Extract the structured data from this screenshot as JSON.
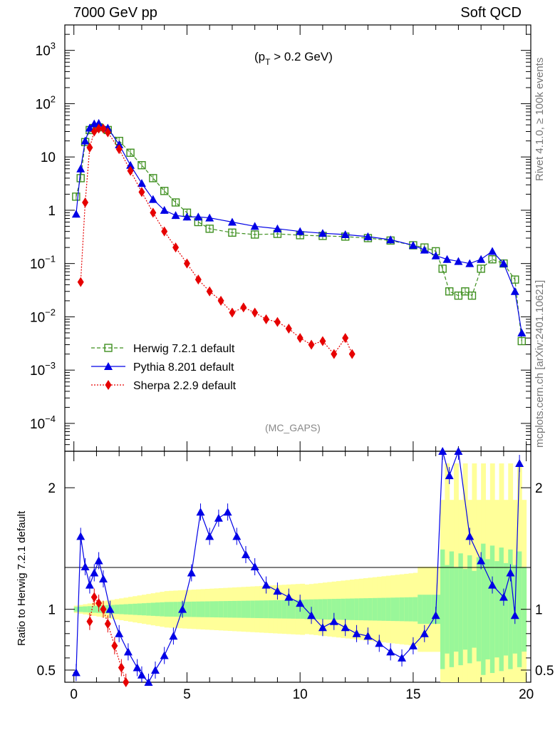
{
  "header": {
    "left": "7000 GeV pp",
    "right": "Soft QCD"
  },
  "side": {
    "rivet": "Rivet 4.1.0, ≥ 100k events",
    "mcplots": "mcplots.cern.ch [arXiv:2401.10621]"
  },
  "chart_data": {
    "type": "line",
    "title": "7000 GeV pp",
    "process": "Soft QCD",
    "annotation": "(p_T > 0.2 GeV)",
    "watermark": "(MC_GAPS)",
    "xlabel": "",
    "ylabel": "",
    "ratio_ylabel": "Ratio to Herwig 7.2.1 default",
    "xlim": [
      -0.4,
      20.2
    ],
    "ylim": [
      3e-05,
      3000
    ],
    "ratio_ylim": [
      0.4,
      2.3
    ],
    "yscale": "log",
    "x_ticks": [
      "0",
      "5",
      "10",
      "15",
      "20"
    ],
    "y_ticks": [
      {
        "v": 0.0001,
        "base": "10",
        "exp": "−4"
      },
      {
        "v": 0.001,
        "base": "10",
        "exp": "−3"
      },
      {
        "v": 0.01,
        "base": "10",
        "exp": "−2"
      },
      {
        "v": 0.1,
        "base": "10",
        "exp": "−1"
      },
      {
        "v": 1,
        "base": "1",
        "exp": ""
      },
      {
        "v": 10,
        "base": "10",
        "exp": ""
      },
      {
        "v": 100,
        "base": "10",
        "exp": "2"
      },
      {
        "v": 1000,
        "base": "10",
        "exp": "3"
      }
    ],
    "ratio_ticks": [
      {
        "v": 0.5,
        "label": "0.5"
      },
      {
        "v": 1,
        "label": "1"
      },
      {
        "v": 2,
        "label": "2"
      }
    ],
    "legend_position": "bottom-left",
    "series": [
      {
        "name": "Herwig 7.2.1 default",
        "color": "#3e8f1f",
        "marker": "open-square",
        "x": [
          0.1,
          0.3,
          0.5,
          0.7,
          0.9,
          1.1,
          1.5,
          2.0,
          2.5,
          3.0,
          3.5,
          4.0,
          4.5,
          5.0,
          5.5,
          6.0,
          7.0,
          8.0,
          9.0,
          10.0,
          11.0,
          12.0,
          13.0,
          14.0,
          15.0,
          15.5,
          16.0,
          16.3,
          16.6,
          17.0,
          17.3,
          17.6,
          18.0,
          18.5,
          19.0,
          19.5,
          19.8
        ],
        "y": [
          1.8,
          4.0,
          19,
          32,
          35,
          36,
          32,
          20,
          12,
          7,
          4,
          2.3,
          1.4,
          0.9,
          0.6,
          0.45,
          0.38,
          0.35,
          0.36,
          0.34,
          0.33,
          0.32,
          0.3,
          0.27,
          0.22,
          0.2,
          0.17,
          0.08,
          0.03,
          0.025,
          0.03,
          0.025,
          0.08,
          0.12,
          0.1,
          0.05,
          0.0035
        ]
      },
      {
        "name": "Pythia 8.201 default",
        "color": "#0000e6",
        "marker": "filled-triangle",
        "x": [
          0.1,
          0.3,
          0.5,
          0.7,
          0.9,
          1.1,
          1.5,
          2.0,
          2.5,
          3.0,
          3.5,
          4.0,
          4.5,
          5.0,
          5.5,
          6.0,
          7.0,
          8.0,
          9.0,
          10.0,
          11.0,
          12.0,
          13.0,
          14.0,
          15.0,
          15.5,
          16.0,
          16.5,
          17.0,
          17.5,
          18.0,
          18.5,
          19.0,
          19.5,
          19.8
        ],
        "y": [
          0.85,
          6.0,
          20,
          35,
          42,
          43,
          35,
          17,
          7,
          3.2,
          1.6,
          1.0,
          0.8,
          0.75,
          0.75,
          0.72,
          0.6,
          0.5,
          0.45,
          0.4,
          0.37,
          0.35,
          0.32,
          0.28,
          0.22,
          0.18,
          0.14,
          0.12,
          0.11,
          0.1,
          0.12,
          0.17,
          0.1,
          0.03,
          0.005
        ]
      },
      {
        "name": "Sherpa 2.2.9 default",
        "color": "#e60000",
        "marker": "filled-diamond",
        "x": [
          0.3,
          0.5,
          0.7,
          0.9,
          1.1,
          1.3,
          1.5,
          2.0,
          2.5,
          3.0,
          3.5,
          4.0,
          4.5,
          5.0,
          5.5,
          6.0,
          6.5,
          7.0,
          7.5,
          8.0,
          8.5,
          9.0,
          9.5,
          10.0,
          10.5,
          11.0,
          11.5,
          12.0,
          12.3
        ],
        "y": [
          0.045,
          1.4,
          15,
          30,
          34,
          34,
          29,
          14,
          5.5,
          2.2,
          0.9,
          0.4,
          0.2,
          0.1,
          0.05,
          0.03,
          0.02,
          0.012,
          0.015,
          0.012,
          0.009,
          0.008,
          0.006,
          0.004,
          0.003,
          0.0035,
          0.002,
          0.004,
          0.002
        ]
      }
    ],
    "ratio_series": [
      {
        "name": "Pythia 8.201 default",
        "color": "#0000e6",
        "x": [
          0.1,
          0.3,
          0.5,
          0.7,
          0.9,
          1.1,
          1.3,
          1.6,
          2.0,
          2.4,
          2.8,
          3.0,
          3.3,
          3.6,
          4.0,
          4.4,
          4.8,
          5.2,
          5.6,
          6.0,
          6.4,
          6.8,
          7.2,
          7.6,
          8.0,
          8.5,
          9.0,
          9.5,
          10.0,
          10.5,
          11.0,
          11.5,
          12.0,
          12.5,
          13.0,
          13.5,
          14.0,
          14.5,
          15.0,
          15.5,
          16.0,
          16.3,
          16.6,
          17.0,
          17.5,
          18.0,
          18.5,
          19.0,
          19.3,
          19.5,
          19.7
        ],
        "y": [
          0.48,
          1.6,
          1.35,
          1.2,
          1.3,
          1.4,
          1.25,
          1.0,
          0.8,
          0.65,
          0.52,
          0.46,
          0.4,
          0.5,
          0.62,
          0.78,
          1.0,
          1.3,
          1.8,
          1.6,
          1.75,
          1.8,
          1.6,
          1.45,
          1.35,
          1.2,
          1.15,
          1.1,
          1.05,
          0.95,
          0.85,
          0.9,
          0.85,
          0.8,
          0.78,
          0.72,
          0.65,
          0.6,
          0.7,
          0.8,
          0.95,
          2.3,
          2.1,
          2.3,
          1.6,
          1.4,
          1.2,
          1.1,
          1.3,
          0.95,
          2.2
        ]
      },
      {
        "name": "Sherpa 2.2.9 default",
        "color": "#e60000",
        "x": [
          0.7,
          0.9,
          1.1,
          1.3,
          1.5,
          1.8,
          2.1,
          2.3
        ],
        "y": [
          0.9,
          1.1,
          1.05,
          1.0,
          0.88,
          0.7,
          0.52,
          0.4
        ]
      }
    ],
    "uncertainty_bands": [
      {
        "name": "Herwig MC stat (inner)",
        "color": "#99f799"
      },
      {
        "name": "Herwig MC total (outer)",
        "color": "#ffff99"
      }
    ]
  }
}
